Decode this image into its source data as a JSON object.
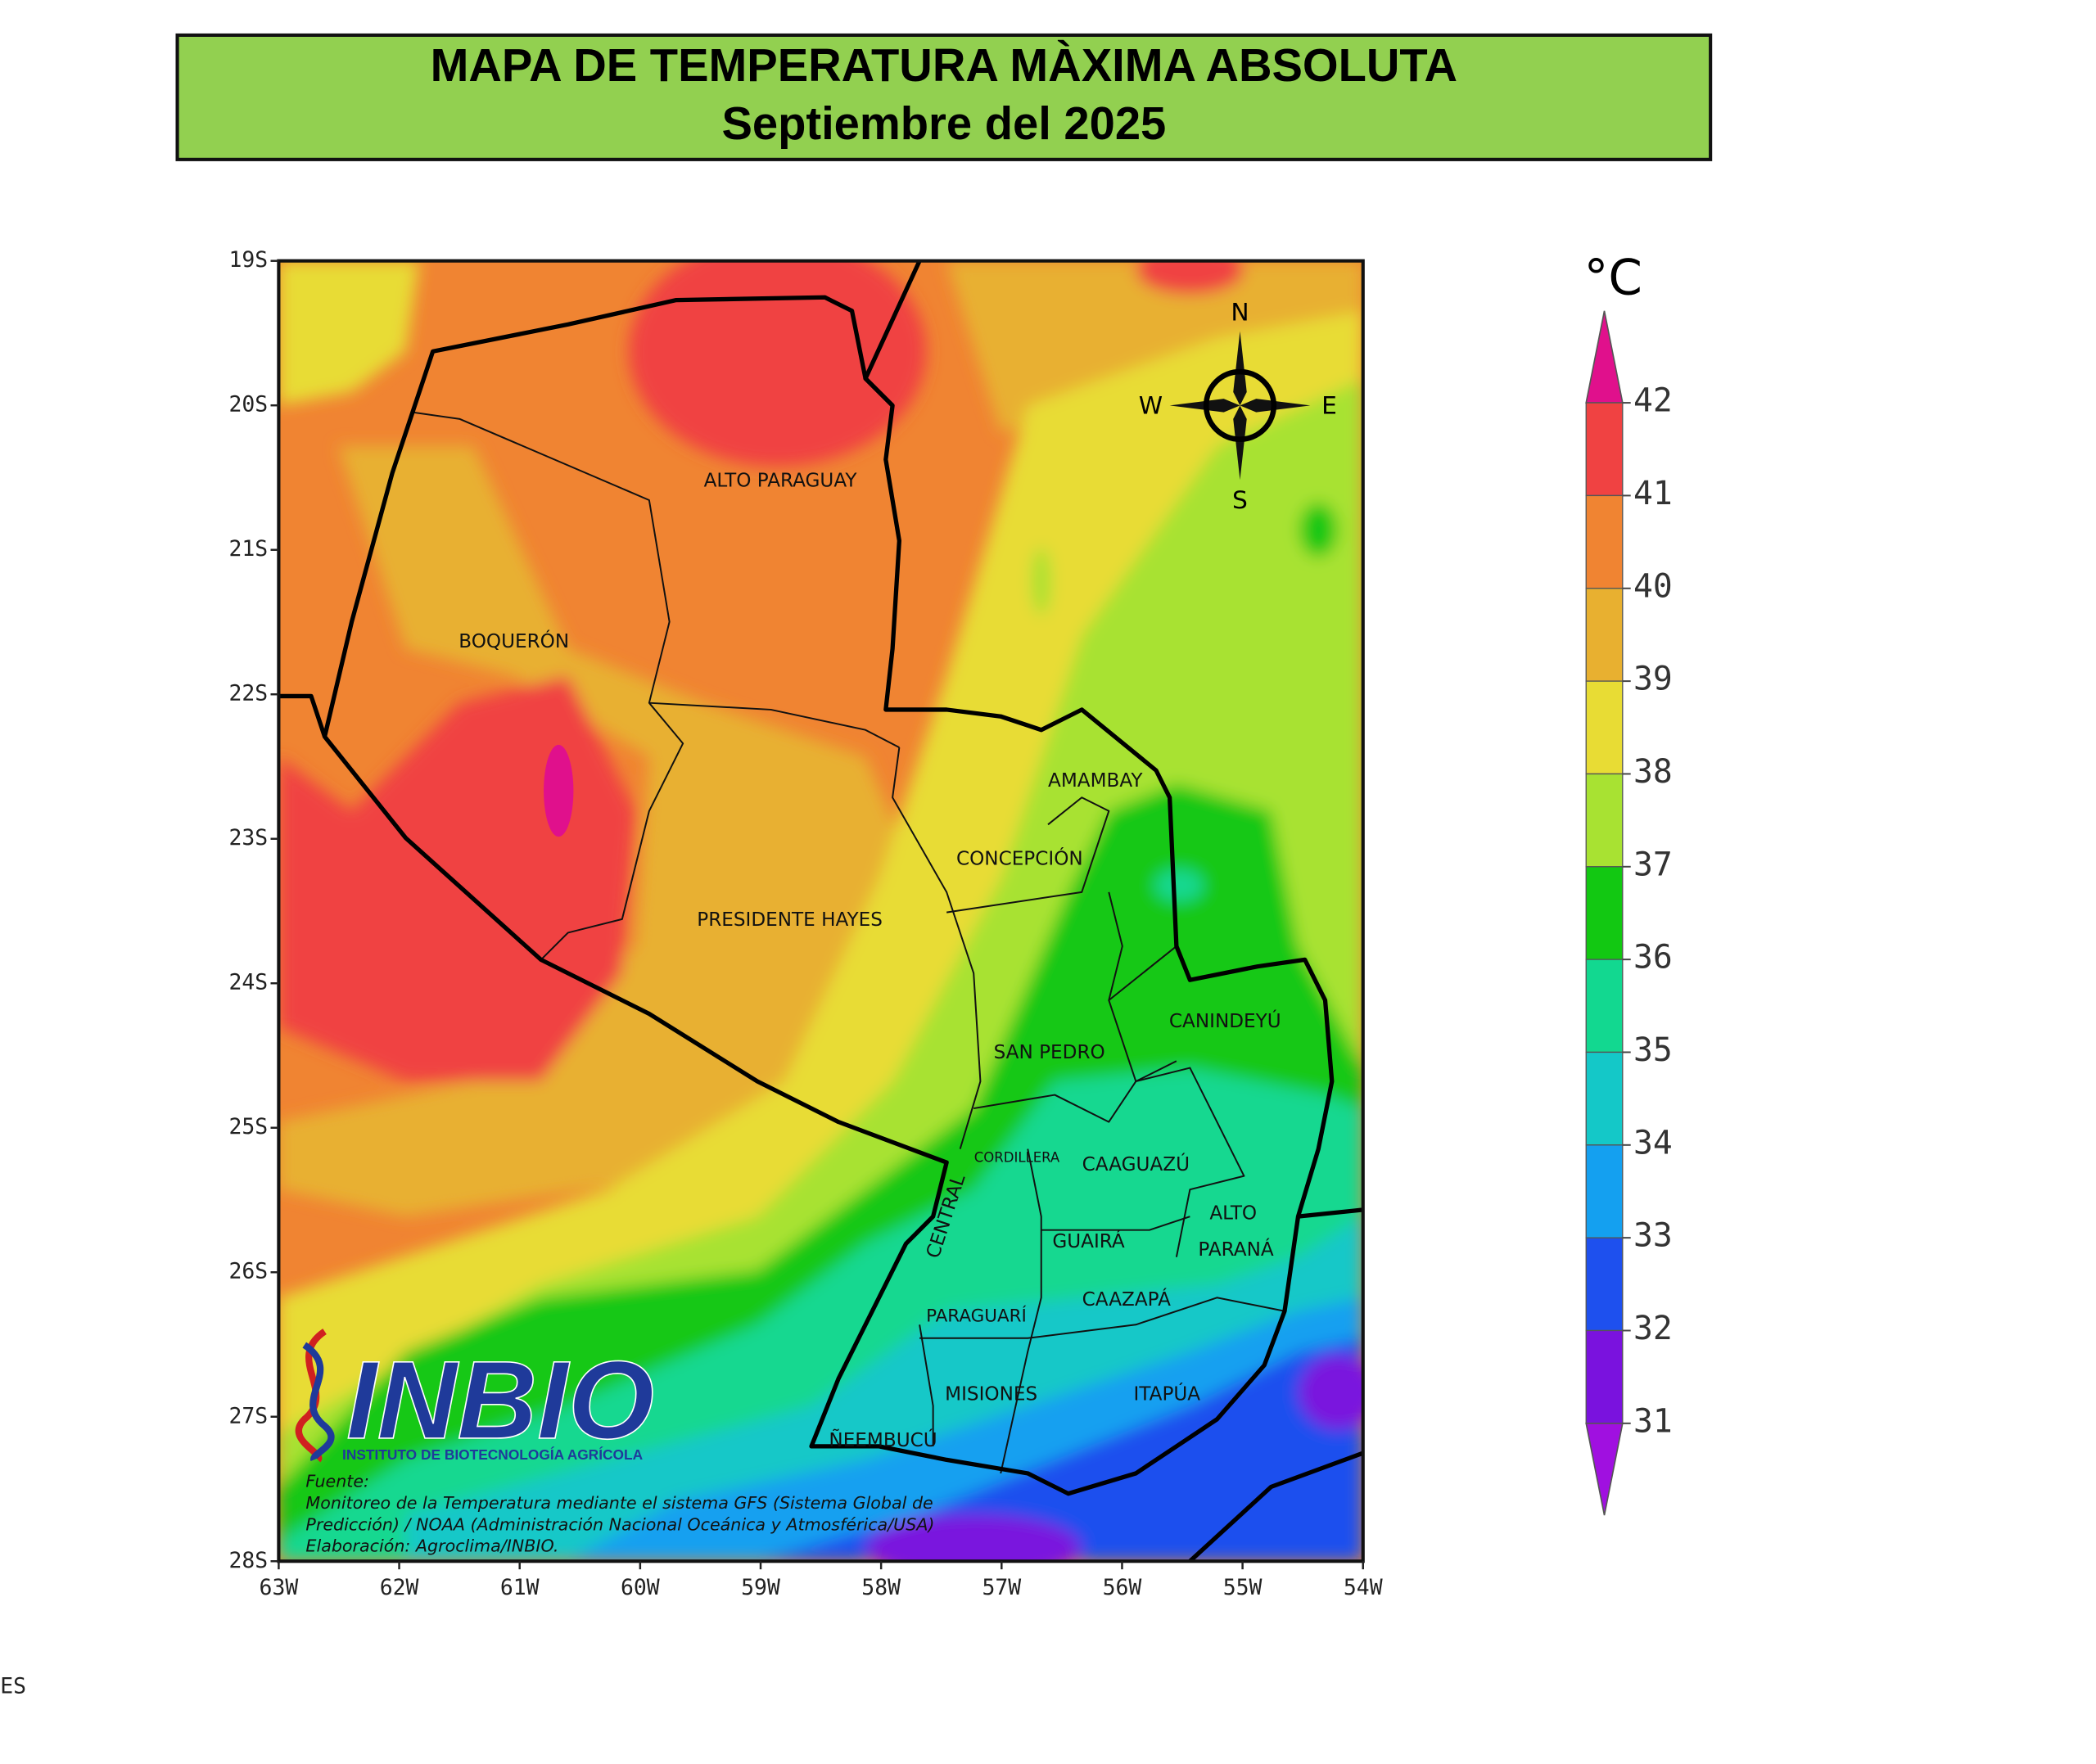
{
  "header": {
    "title": "MAPA DE TEMPERATURA MÀXIMA ABSOLUTA",
    "subtitle": "Septiembre del 2025"
  },
  "map": {
    "lat_labels": [
      "19S",
      "20S",
      "21S",
      "22S",
      "23S",
      "24S",
      "25S",
      "26S",
      "27S",
      "28S"
    ],
    "lon_labels": [
      "63W",
      "62W",
      "61W",
      "60W",
      "59W",
      "58W",
      "57W",
      "56W",
      "55W",
      "54W"
    ],
    "compass": {
      "n": "N",
      "s": "S",
      "w": "W",
      "e": "E"
    },
    "departments": {
      "alto_paraguay": "ALTO PARAGUAY",
      "boqueron": "BOQUERÓN",
      "presidente_hayes": "PRESIDENTE HAYES",
      "concepcion": "CONCEPCIÓN",
      "amambay": "AMAMBAY",
      "san_pedro": "SAN PEDRO",
      "canindeyu": "CANINDEYÚ",
      "cordillera": "CORDILLERA",
      "caaguazu": "CAAGUAZÚ",
      "alto_parana_1": "ALTO",
      "alto_parana_2": "PARANÁ",
      "guaira": "GUAIRÁ",
      "caazapa": "CAAZAPÁ",
      "central": "CENTRAL",
      "paraguari": "PARAGUARÍ",
      "misiones": "MISIONES",
      "itapua": "ITAPÚA",
      "neembucu": "ÑEEMBUCÚ"
    }
  },
  "logo": {
    "name": "INBIO",
    "subtitle": "INSTITUTO DE BIOTECNOLOGÍA AGRÍCOLA"
  },
  "source": [
    "Fuente:",
    "Monitoreo de la Temperatura mediante el sistema GFS (Sistema Global de",
    "Predicción) / NOAA (Administración Nacional Oceánica y Atmosférica/USA)",
    "Elaboración: Agroclima/INBIO."
  ],
  "colorbar": {
    "unit": "°C",
    "ticks": [
      42,
      41,
      40,
      39,
      38,
      37,
      36,
      35,
      34,
      33,
      32,
      31
    ],
    "colors": [
      "#e0108c",
      "#f04242",
      "#f08432",
      "#e8b030",
      "#e8dc34",
      "#a8e232",
      "#12c812",
      "#12d890",
      "#14c8c8",
      "#14a0f0",
      "#1e50ee",
      "#7a12de",
      "#a010e0"
    ]
  },
  "stray_text": "ES"
}
